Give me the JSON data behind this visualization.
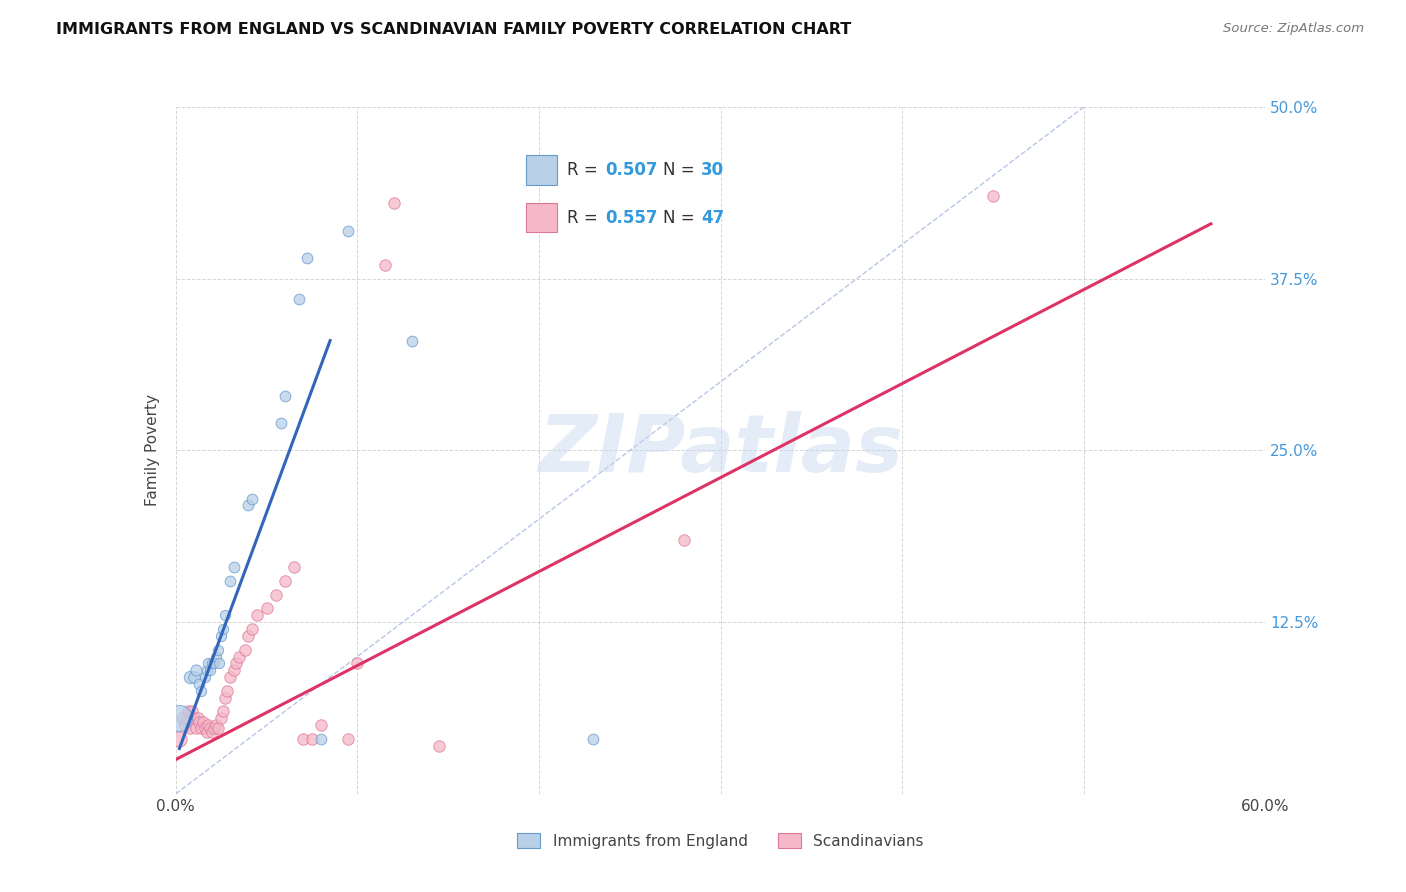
{
  "title": "IMMIGRANTS FROM ENGLAND VS SCANDINAVIAN FAMILY POVERTY CORRELATION CHART",
  "source": "Source: ZipAtlas.com",
  "xlim": [
    0,
    0.6
  ],
  "ylim": [
    0,
    0.5
  ],
  "england_color": "#b8d0e8",
  "england_edge_color": "#6699cc",
  "scand_color": "#f5b8c8",
  "scand_edge_color": "#dd7799",
  "trend_england_color": "#3366bb",
  "trend_scand_color": "#dd3366",
  "diag_color": "#99aedd",
  "watermark_text": "ZIPatlas",
  "ylabel": "Family Poverty",
  "legend_labels": [
    "Immigrants from England",
    "Scandinavians"
  ],
  "legend_r1": "0.507",
  "legend_n1": "30",
  "legend_r2": "0.557",
  "legend_n2": "47",
  "england_points": [
    [
      0.002,
      0.055,
      350
    ],
    [
      0.008,
      0.085,
      80
    ],
    [
      0.01,
      0.085,
      70
    ],
    [
      0.011,
      0.09,
      65
    ],
    [
      0.013,
      0.08,
      60
    ],
    [
      0.014,
      0.075,
      55
    ],
    [
      0.016,
      0.085,
      55
    ],
    [
      0.017,
      0.09,
      55
    ],
    [
      0.018,
      0.095,
      55
    ],
    [
      0.019,
      0.09,
      55
    ],
    [
      0.02,
      0.095,
      55
    ],
    [
      0.021,
      0.095,
      55
    ],
    [
      0.022,
      0.1,
      55
    ],
    [
      0.023,
      0.105,
      55
    ],
    [
      0.024,
      0.095,
      55
    ],
    [
      0.025,
      0.115,
      55
    ],
    [
      0.026,
      0.12,
      55
    ],
    [
      0.027,
      0.13,
      55
    ],
    [
      0.03,
      0.155,
      60
    ],
    [
      0.032,
      0.165,
      60
    ],
    [
      0.04,
      0.21,
      60
    ],
    [
      0.042,
      0.215,
      60
    ],
    [
      0.058,
      0.27,
      60
    ],
    [
      0.06,
      0.29,
      60
    ],
    [
      0.068,
      0.36,
      60
    ],
    [
      0.072,
      0.39,
      60
    ],
    [
      0.08,
      0.04,
      60
    ],
    [
      0.095,
      0.41,
      60
    ],
    [
      0.13,
      0.33,
      60
    ],
    [
      0.23,
      0.04,
      60
    ]
  ],
  "scand_points": [
    [
      0.002,
      0.04,
      120
    ],
    [
      0.004,
      0.055,
      85
    ],
    [
      0.005,
      0.05,
      75
    ],
    [
      0.006,
      0.055,
      70
    ],
    [
      0.007,
      0.06,
      68
    ],
    [
      0.008,
      0.048,
      68
    ],
    [
      0.009,
      0.06,
      68
    ],
    [
      0.01,
      0.055,
      68
    ],
    [
      0.011,
      0.048,
      68
    ],
    [
      0.012,
      0.055,
      68
    ],
    [
      0.013,
      0.052,
      68
    ],
    [
      0.014,
      0.048,
      68
    ],
    [
      0.015,
      0.052,
      68
    ],
    [
      0.016,
      0.048,
      68
    ],
    [
      0.017,
      0.045,
      68
    ],
    [
      0.018,
      0.05,
      68
    ],
    [
      0.019,
      0.048,
      68
    ],
    [
      0.02,
      0.045,
      68
    ],
    [
      0.021,
      0.048,
      68
    ],
    [
      0.022,
      0.05,
      68
    ],
    [
      0.023,
      0.048,
      68
    ],
    [
      0.025,
      0.055,
      68
    ],
    [
      0.026,
      0.06,
      68
    ],
    [
      0.027,
      0.07,
      68
    ],
    [
      0.028,
      0.075,
      68
    ],
    [
      0.03,
      0.085,
      68
    ],
    [
      0.032,
      0.09,
      68
    ],
    [
      0.033,
      0.095,
      68
    ],
    [
      0.035,
      0.1,
      68
    ],
    [
      0.038,
      0.105,
      68
    ],
    [
      0.04,
      0.115,
      68
    ],
    [
      0.042,
      0.12,
      68
    ],
    [
      0.045,
      0.13,
      68
    ],
    [
      0.05,
      0.135,
      68
    ],
    [
      0.055,
      0.145,
      68
    ],
    [
      0.06,
      0.155,
      68
    ],
    [
      0.065,
      0.165,
      68
    ],
    [
      0.07,
      0.04,
      68
    ],
    [
      0.075,
      0.04,
      68
    ],
    [
      0.08,
      0.05,
      68
    ],
    [
      0.095,
      0.04,
      68
    ],
    [
      0.1,
      0.095,
      68
    ],
    [
      0.115,
      0.385,
      68
    ],
    [
      0.12,
      0.43,
      68
    ],
    [
      0.145,
      0.035,
      68
    ],
    [
      0.45,
      0.435,
      68
    ],
    [
      0.28,
      0.185,
      68
    ]
  ],
  "england_line_x": [
    0.002,
    0.085
  ],
  "england_line_y": [
    0.033,
    0.33
  ],
  "scand_line_x": [
    0.0,
    0.57
  ],
  "scand_line_y": [
    0.025,
    0.415
  ]
}
